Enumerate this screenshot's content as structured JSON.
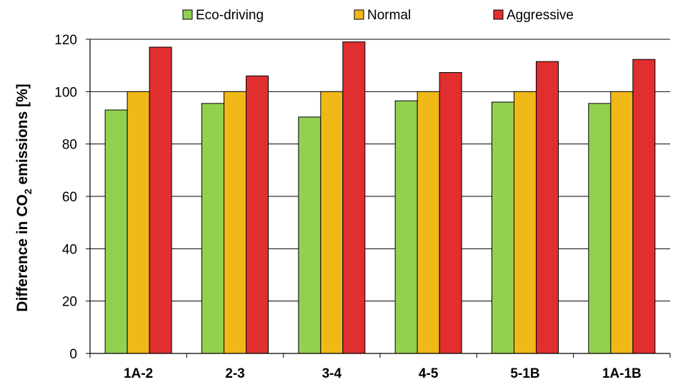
{
  "chart_data": {
    "type": "bar",
    "title": "",
    "xlabel": "",
    "ylabel": "Difference in CO2 emissions [%]",
    "ylabel_parts": {
      "before": "Difference in CO",
      "sub": "2",
      "after": " emissions [%]"
    },
    "categories": [
      "1A-2",
      "2-3",
      "3-4",
      "4-5",
      "5-1B",
      "1A-1B"
    ],
    "series": [
      {
        "name": "Eco-driving",
        "color": "#92d050",
        "values": [
          93,
          95.5,
          90.3,
          96.5,
          96,
          95.5
        ]
      },
      {
        "name": "Normal",
        "color": "#f0b918",
        "values": [
          100,
          100,
          100,
          100,
          100,
          100
        ]
      },
      {
        "name": "Aggressive",
        "color": "#e12e2e",
        "values": [
          117,
          106,
          119,
          107.3,
          111.5,
          112.3
        ]
      }
    ],
    "ylim": [
      0,
      120
    ],
    "yticks": [
      0,
      20,
      40,
      60,
      80,
      100,
      120
    ],
    "grid": true,
    "legend_position": "top"
  }
}
